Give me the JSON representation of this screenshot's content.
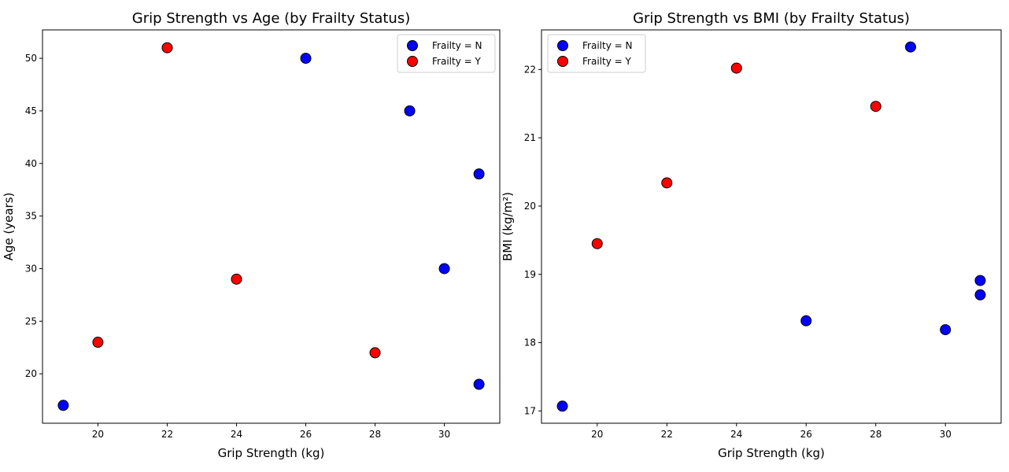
{
  "chart_data": [
    {
      "type": "scatter",
      "title": "Grip Strength vs Age (by Frailty Status)",
      "xlabel": "Grip Strength (kg)",
      "ylabel": "Age (years)",
      "xlim": [
        18.4,
        31.6
      ],
      "ylim": [
        15.3,
        52.7
      ],
      "xticks": [
        20,
        22,
        24,
        26,
        28,
        30
      ],
      "yticks": [
        20,
        25,
        30,
        35,
        40,
        45,
        50
      ],
      "grid": false,
      "legend_position": "top-right",
      "series": [
        {
          "name": "Frailty = N",
          "color": "#0000ff",
          "points": [
            [
              19,
              17
            ],
            [
              26,
              50
            ],
            [
              29,
              45
            ],
            [
              30,
              30
            ],
            [
              31,
              39
            ],
            [
              31,
              19
            ]
          ]
        },
        {
          "name": "Frailty = Y",
          "color": "#ff0000",
          "points": [
            [
              20,
              23
            ],
            [
              22,
              51
            ],
            [
              24,
              29
            ],
            [
              28,
              22
            ]
          ]
        }
      ]
    },
    {
      "type": "scatter",
      "title": "Grip Strength vs BMI (by Frailty Status)",
      "xlabel": "Grip Strength (kg)",
      "ylabel": "BMI (kg/m²)",
      "xlim": [
        18.4,
        31.6
      ],
      "ylim": [
        16.82,
        22.58
      ],
      "xticks": [
        20,
        22,
        24,
        26,
        28,
        30
      ],
      "yticks": [
        17,
        18,
        19,
        20,
        21,
        22
      ],
      "grid": false,
      "legend_position": "top-left",
      "series": [
        {
          "name": "Frailty = N",
          "color": "#0000ff",
          "points": [
            [
              19,
              17.07
            ],
            [
              26,
              18.32
            ],
            [
              29,
              22.33
            ],
            [
              30,
              18.19
            ],
            [
              31,
              18.91
            ],
            [
              31,
              18.7
            ]
          ]
        },
        {
          "name": "Frailty = Y",
          "color": "#ff0000",
          "points": [
            [
              20,
              19.45
            ],
            [
              22,
              20.34
            ],
            [
              24,
              22.02
            ],
            [
              28,
              21.46
            ]
          ]
        }
      ]
    }
  ]
}
